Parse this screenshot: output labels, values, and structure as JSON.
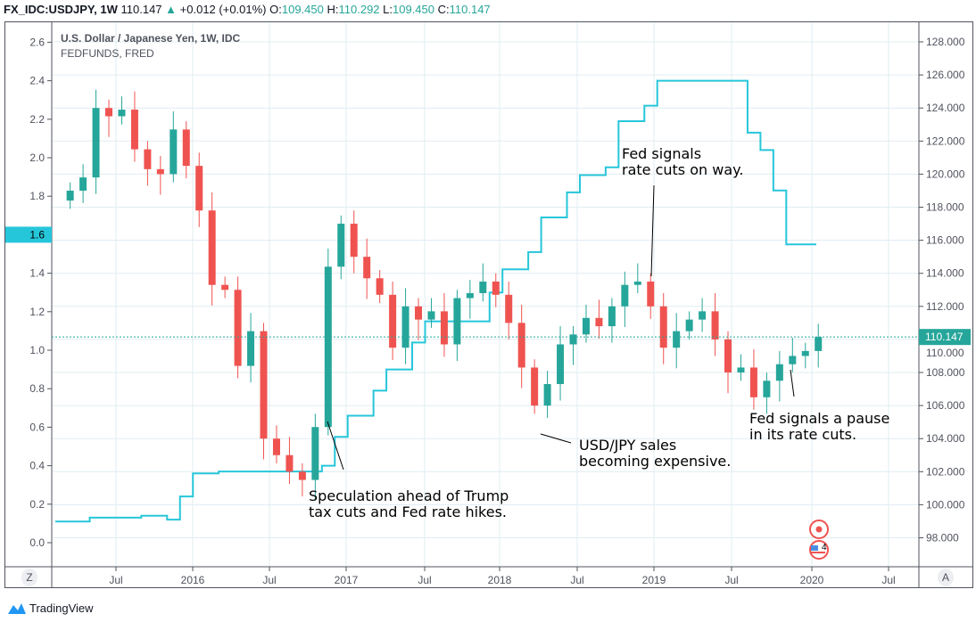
{
  "header": {
    "symbol": "FX_IDC:USDJPY, 1W",
    "last": "110.147",
    "change": "+0.012 (+0.01%)",
    "o_label": "O:",
    "o": "109.450",
    "h_label": "H:",
    "h": "110.292",
    "l_label": "L:",
    "l": "109.450",
    "c_label": "C:",
    "c": "110.147"
  },
  "legend": {
    "main": "U.S. Dollar / Japanese Yen, 1W, IDC",
    "secondary": "FEDFUNDS, FRED"
  },
  "axis_buttons": {
    "left": "Z",
    "right": "A"
  },
  "branding": "TradingView",
  "event_badge_count": "4",
  "colors": {
    "up": "#26a69a",
    "down": "#ef5350",
    "fedfunds": "#26c6da",
    "grid": "#e1ecf2",
    "price_label": "#26a69a"
  },
  "chart_data": {
    "type": "candlestick+line",
    "x_ticks": [
      "Jul",
      "2016",
      "Jul",
      "2017",
      "Jul",
      "2018",
      "Jul",
      "2019",
      "Jul",
      "2020",
      "Jul"
    ],
    "left_axis": {
      "label_series": "FEDFUNDS",
      "ticks": [
        "0.0",
        "0.2",
        "0.4",
        "0.6",
        "0.8",
        "1.0",
        "1.2",
        "1.4",
        "1.6",
        "1.8",
        "2.0",
        "2.2",
        "2.4",
        "2.6"
      ],
      "ylim": [
        0,
        2.6
      ],
      "current_label": "1.6"
    },
    "right_axis": {
      "label_series": "USDJPY",
      "ticks": [
        "98.000",
        "100.000",
        "102.000",
        "104.000",
        "106.000",
        "108.000",
        "110.000",
        "112.000",
        "114.000",
        "116.000",
        "118.000",
        "120.000",
        "122.000",
        "124.000",
        "126.000",
        "128.000"
      ],
      "ylim": [
        97,
        128.5
      ],
      "current_label": "110.147",
      "current": 110.147
    },
    "usdjpy_monthly_close": [
      [
        "2015-03",
        119.0
      ],
      [
        "2015-04",
        119.8
      ],
      [
        "2015-05",
        124.0
      ],
      [
        "2015-06",
        123.5
      ],
      [
        "2015-07",
        123.9
      ],
      [
        "2015-08",
        121.5
      ],
      [
        "2015-09",
        120.3
      ],
      [
        "2015-10",
        120.0
      ],
      [
        "2015-11",
        122.7
      ],
      [
        "2015-12",
        120.5
      ],
      [
        "2016-01",
        117.8
      ],
      [
        "2016-02",
        113.3
      ],
      [
        "2016-03",
        113.0
      ],
      [
        "2016-04",
        108.4
      ],
      [
        "2016-05",
        110.5
      ],
      [
        "2016-06",
        104.0
      ],
      [
        "2016-07",
        103.0
      ],
      [
        "2016-08",
        102.0
      ],
      [
        "2016-09",
        101.5
      ],
      [
        "2016-10",
        104.7
      ],
      [
        "2016-11",
        114.4
      ],
      [
        "2016-12",
        117.0
      ],
      [
        "2017-01",
        115.0
      ],
      [
        "2017-02",
        113.7
      ],
      [
        "2017-03",
        112.7
      ],
      [
        "2017-04",
        109.5
      ],
      [
        "2017-05",
        112.0
      ],
      [
        "2017-06",
        111.2
      ],
      [
        "2017-07",
        111.7
      ],
      [
        "2017-08",
        109.7
      ],
      [
        "2017-09",
        112.5
      ],
      [
        "2017-10",
        112.8
      ],
      [
        "2017-11",
        113.5
      ],
      [
        "2017-12",
        112.7
      ],
      [
        "2018-01",
        111.0
      ],
      [
        "2018-02",
        108.3
      ],
      [
        "2018-03",
        106.0
      ],
      [
        "2018-04",
        107.3
      ],
      [
        "2018-05",
        109.7
      ],
      [
        "2018-06",
        110.3
      ],
      [
        "2018-07",
        111.3
      ],
      [
        "2018-08",
        110.8
      ],
      [
        "2018-09",
        112.0
      ],
      [
        "2018-10",
        113.3
      ],
      [
        "2018-11",
        113.5
      ],
      [
        "2018-12",
        112.0
      ],
      [
        "2019-01",
        109.5
      ],
      [
        "2019-02",
        110.5
      ],
      [
        "2019-03",
        111.2
      ],
      [
        "2019-04",
        111.7
      ],
      [
        "2019-05",
        110.0
      ],
      [
        "2019-06",
        108.0
      ],
      [
        "2019-07",
        108.3
      ],
      [
        "2019-08",
        106.5
      ],
      [
        "2019-09",
        107.5
      ],
      [
        "2019-10",
        108.5
      ],
      [
        "2019-11",
        109.0
      ],
      [
        "2019-12",
        109.3
      ],
      [
        "2020-01",
        110.147
      ]
    ],
    "fedfunds_steps": [
      [
        "2015-03",
        0.11
      ],
      [
        "2015-05",
        0.13
      ],
      [
        "2015-09",
        0.14
      ],
      [
        "2015-11",
        0.12
      ],
      [
        "2015-12",
        0.24
      ],
      [
        "2016-01",
        0.36
      ],
      [
        "2016-03",
        0.37
      ],
      [
        "2016-11",
        0.4
      ],
      [
        "2016-12",
        0.55
      ],
      [
        "2017-01",
        0.66
      ],
      [
        "2017-03",
        0.79
      ],
      [
        "2017-04",
        0.9
      ],
      [
        "2017-06",
        1.04
      ],
      [
        "2017-07",
        1.15
      ],
      [
        "2017-12",
        1.3
      ],
      [
        "2018-01",
        1.42
      ],
      [
        "2018-03",
        1.51
      ],
      [
        "2018-04",
        1.69
      ],
      [
        "2018-06",
        1.82
      ],
      [
        "2018-07",
        1.91
      ],
      [
        "2018-09",
        1.95
      ],
      [
        "2018-10",
        2.19
      ],
      [
        "2018-12",
        2.27
      ],
      [
        "2019-01",
        2.4
      ],
      [
        "2019-07",
        2.4
      ],
      [
        "2019-08",
        2.13
      ],
      [
        "2019-09",
        2.04
      ],
      [
        "2019-10",
        1.83
      ],
      [
        "2019-11",
        1.55
      ],
      [
        "2020-01",
        1.55
      ]
    ],
    "annotations": [
      {
        "lines": [
          "Fed signals",
          "rate cuts on way."
        ]
      },
      {
        "lines": [
          "USD/JPY sales",
          "becoming expensive."
        ]
      },
      {
        "lines": [
          "Fed signals a pause",
          "in its rate cuts."
        ]
      },
      {
        "lines": [
          "Speculation ahead of Trump",
          "tax cuts and Fed rate hikes."
        ]
      }
    ]
  }
}
